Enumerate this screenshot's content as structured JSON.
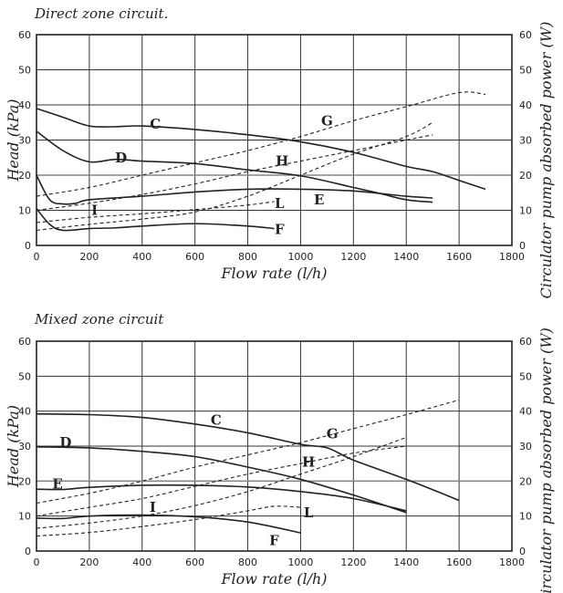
{
  "chart_data": [
    {
      "type": "line",
      "title": "Direct zone circuit.",
      "xlabel": "Flow rate (l/h)",
      "ylabel": "Head (kPa)",
      "y2label": "Circulator pump absorbed power (W)",
      "xlim": [
        0,
        1800
      ],
      "ylim": [
        0,
        60
      ],
      "y2lim": [
        0,
        60
      ],
      "xticks": [
        "0",
        "200",
        "400",
        "600",
        "800",
        "1000",
        "1200",
        "1400",
        "1600",
        "1800"
      ],
      "yticks": [
        "0",
        "10",
        "20",
        "30",
        "40",
        "50",
        "60"
      ],
      "grid": true,
      "series": [
        {
          "name": "C",
          "style": "solid",
          "axis": "left",
          "points": [
            [
              0,
              39
            ],
            [
              100,
              36.5
            ],
            [
              200,
              34
            ],
            [
              300,
              33.8
            ],
            [
              400,
              34
            ],
            [
              600,
              33
            ],
            [
              800,
              31.5
            ],
            [
              1000,
              29.5
            ],
            [
              1200,
              26.5
            ],
            [
              1400,
              22.5
            ],
            [
              1500,
              21
            ],
            [
              1600,
              18.5
            ],
            [
              1700,
              16
            ]
          ]
        },
        {
          "name": "D",
          "style": "solid",
          "axis": "left",
          "points": [
            [
              0,
              32.5
            ],
            [
              100,
              27
            ],
            [
              200,
              23.8
            ],
            [
              300,
              24.5
            ],
            [
              400,
              24
            ],
            [
              600,
              23.3
            ],
            [
              800,
              21.5
            ],
            [
              1000,
              19.8
            ],
            [
              1200,
              16.5
            ],
            [
              1300,
              14.8
            ],
            [
              1400,
              13
            ],
            [
              1500,
              12.3
            ]
          ]
        },
        {
          "name": "E",
          "style": "solid",
          "axis": "left",
          "points": [
            [
              0,
              20
            ],
            [
              50,
              13
            ],
            [
              100,
              11.8
            ],
            [
              150,
              12
            ],
            [
              200,
              13
            ],
            [
              400,
              14
            ],
            [
              600,
              15.2
            ],
            [
              800,
              16
            ],
            [
              1000,
              16
            ],
            [
              1200,
              15.5
            ],
            [
              1400,
              14
            ],
            [
              1500,
              13.5
            ]
          ]
        },
        {
          "name": "F",
          "style": "solid",
          "axis": "left",
          "points": [
            [
              0,
              10.5
            ],
            [
              50,
              6
            ],
            [
              100,
              4.3
            ],
            [
              200,
              4.8
            ],
            [
              300,
              5
            ],
            [
              400,
              5.5
            ],
            [
              600,
              6.2
            ],
            [
              800,
              5.5
            ],
            [
              900,
              4.8
            ]
          ]
        },
        {
          "name": "G",
          "style": "dashed",
          "axis": "right",
          "points": [
            [
              0,
              14
            ],
            [
              200,
              16.5
            ],
            [
              400,
              20
            ],
            [
              600,
              23.5
            ],
            [
              800,
              27
            ],
            [
              1000,
              31
            ],
            [
              1200,
              35.5
            ],
            [
              1400,
              39.5
            ],
            [
              1600,
              43.5
            ],
            [
              1700,
              43
            ]
          ]
        },
        {
          "name": "H",
          "style": "dashed",
          "axis": "right",
          "points": [
            [
              0,
              10
            ],
            [
              200,
              12
            ],
            [
              400,
              14.5
            ],
            [
              600,
              17.5
            ],
            [
              800,
              21
            ],
            [
              1000,
              24
            ],
            [
              1200,
              27
            ],
            [
              1400,
              30
            ],
            [
              1500,
              31.5
            ]
          ]
        },
        {
          "name": "I",
          "style": "dashed",
          "axis": "right",
          "points": [
            [
              0,
              4.3
            ],
            [
              200,
              6
            ],
            [
              400,
              7.5
            ],
            [
              600,
              9.5
            ],
            [
              800,
              14
            ],
            [
              1000,
              20
            ],
            [
              1200,
              26
            ],
            [
              1400,
              31
            ],
            [
              1500,
              35
            ]
          ]
        },
        {
          "name": "L",
          "style": "dashed",
          "axis": "right",
          "points": [
            [
              0,
              6.5
            ],
            [
              200,
              8
            ],
            [
              400,
              9
            ],
            [
              600,
              10.2
            ],
            [
              800,
              11.5
            ],
            [
              900,
              12.5
            ]
          ]
        }
      ]
    },
    {
      "type": "line",
      "title": "Mixed zone circuit",
      "xlabel": "Flow rate (l/h)",
      "ylabel": "Head (kPa)",
      "y2label": "Circulator pump absorbed power (W)",
      "xlim": [
        0,
        1800
      ],
      "ylim": [
        0,
        60
      ],
      "y2lim": [
        0,
        60
      ],
      "xticks": [
        "0",
        "200",
        "400",
        "600",
        "800",
        "1000",
        "1200",
        "1400",
        "1600",
        "1800"
      ],
      "yticks": [
        "0",
        "10",
        "20",
        "30",
        "40",
        "50",
        "60"
      ],
      "grid": true,
      "series": [
        {
          "name": "C",
          "style": "solid",
          "axis": "left",
          "points": [
            [
              0,
              39.2
            ],
            [
              200,
              39
            ],
            [
              400,
              38.2
            ],
            [
              600,
              36.3
            ],
            [
              800,
              33.8
            ],
            [
              1000,
              30.5
            ],
            [
              1100,
              29.5
            ],
            [
              1200,
              26
            ],
            [
              1400,
              20.5
            ],
            [
              1600,
              14.5
            ]
          ]
        },
        {
          "name": "D",
          "style": "solid",
          "axis": "left",
          "points": [
            [
              0,
              29.8
            ],
            [
              200,
              29.5
            ],
            [
              400,
              28.5
            ],
            [
              600,
              27
            ],
            [
              800,
              24
            ],
            [
              1000,
              20.5
            ],
            [
              1200,
              16
            ],
            [
              1400,
              11
            ]
          ]
        },
        {
          "name": "E",
          "style": "solid",
          "axis": "left",
          "points": [
            [
              0,
              17.7
            ],
            [
              100,
              17.6
            ],
            [
              200,
              18.2
            ],
            [
              400,
              18.8
            ],
            [
              600,
              18.8
            ],
            [
              800,
              18.3
            ],
            [
              1000,
              17
            ],
            [
              1200,
              15
            ],
            [
              1400,
              11.5
            ]
          ]
        },
        {
          "name": "F",
          "style": "solid",
          "axis": "left",
          "points": [
            [
              0,
              9.4
            ],
            [
              100,
              9.3
            ],
            [
              200,
              10
            ],
            [
              400,
              10.3
            ],
            [
              600,
              9.8
            ],
            [
              800,
              8.3
            ],
            [
              1000,
              5.2
            ]
          ]
        },
        {
          "name": "G",
          "style": "dashed",
          "axis": "right",
          "points": [
            [
              0,
              13.7
            ],
            [
              200,
              16.5
            ],
            [
              400,
              20
            ],
            [
              600,
              24
            ],
            [
              800,
              27.5
            ],
            [
              1000,
              31
            ],
            [
              1200,
              35
            ],
            [
              1400,
              39
            ],
            [
              1600,
              43.2
            ]
          ]
        },
        {
          "name": "H",
          "style": "dashed",
          "axis": "right",
          "points": [
            [
              0,
              10
            ],
            [
              200,
              12.5
            ],
            [
              400,
              15
            ],
            [
              600,
              18.5
            ],
            [
              800,
              22
            ],
            [
              1000,
              25
            ],
            [
              1200,
              28
            ],
            [
              1400,
              30
            ]
          ]
        },
        {
          "name": "I",
          "style": "dashed",
          "axis": "right",
          "points": [
            [
              0,
              6.5
            ],
            [
              200,
              8
            ],
            [
              400,
              10
            ],
            [
              600,
              13
            ],
            [
              800,
              17
            ],
            [
              1000,
              22
            ],
            [
              1200,
              27
            ],
            [
              1400,
              32.5
            ]
          ]
        },
        {
          "name": "L",
          "style": "dashed",
          "axis": "right",
          "points": [
            [
              0,
              4.3
            ],
            [
              200,
              5.3
            ],
            [
              400,
              7
            ],
            [
              600,
              9
            ],
            [
              800,
              11.5
            ],
            [
              900,
              12.8
            ],
            [
              1000,
              12.5
            ]
          ]
        }
      ]
    }
  ]
}
